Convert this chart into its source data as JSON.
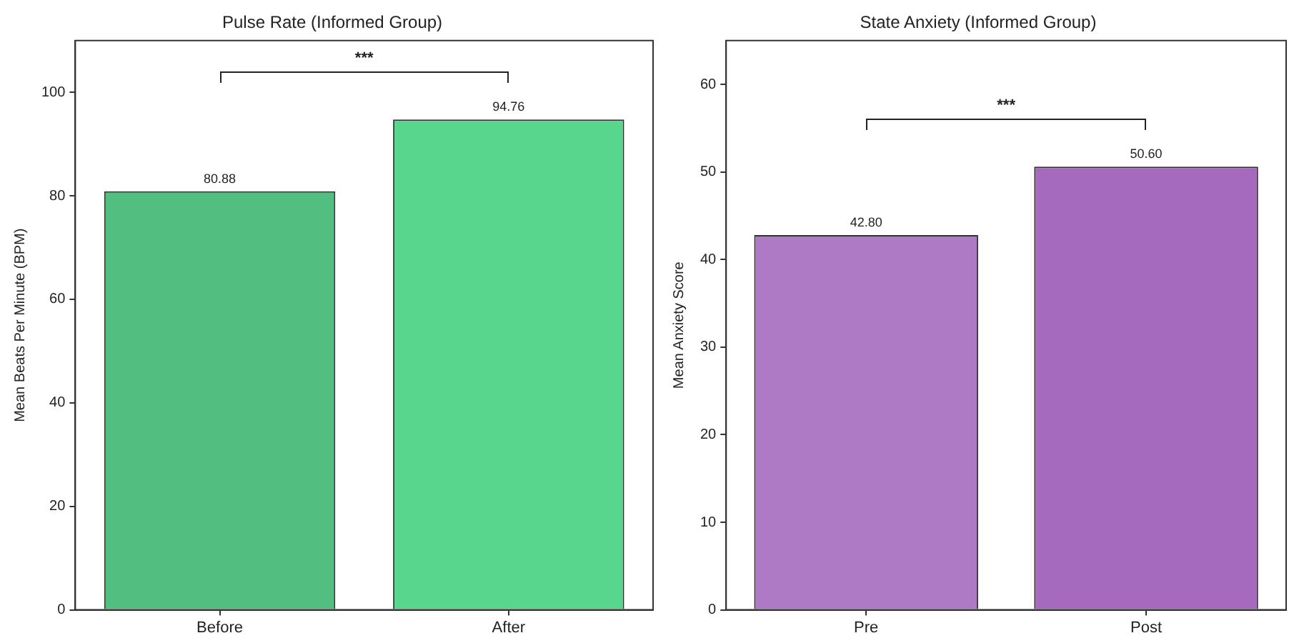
{
  "chart_data": [
    {
      "type": "bar",
      "title": "Pulse Rate (Informed Group)",
      "ylabel": "Mean Beats Per Minute (BPM)",
      "categories": [
        "Before",
        "After"
      ],
      "values": [
        80.88,
        94.76
      ],
      "colors": [
        "#52be80",
        "#58d68d"
      ],
      "ylim": [
        0,
        110
      ],
      "yticks": [
        0,
        20,
        40,
        60,
        80,
        100
      ],
      "grid": false,
      "legend": false,
      "data_labels": true,
      "annotations": [
        "***"
      ]
    },
    {
      "type": "bar",
      "title": "State Anxiety (Informed Group)",
      "ylabel": "Mean Anxiety Score",
      "categories": [
        "Pre",
        "Post"
      ],
      "values": [
        42.8,
        50.6
      ],
      "value_labels": [
        "42.80",
        "50.60"
      ],
      "colors": [
        "#af7ac5",
        "#a569bd"
      ],
      "ylim": [
        0,
        65
      ],
      "yticks": [
        0,
        10,
        20,
        30,
        40,
        50,
        60
      ],
      "grid": false,
      "legend": false,
      "annotations": [
        "***"
      ]
    }
  ]
}
